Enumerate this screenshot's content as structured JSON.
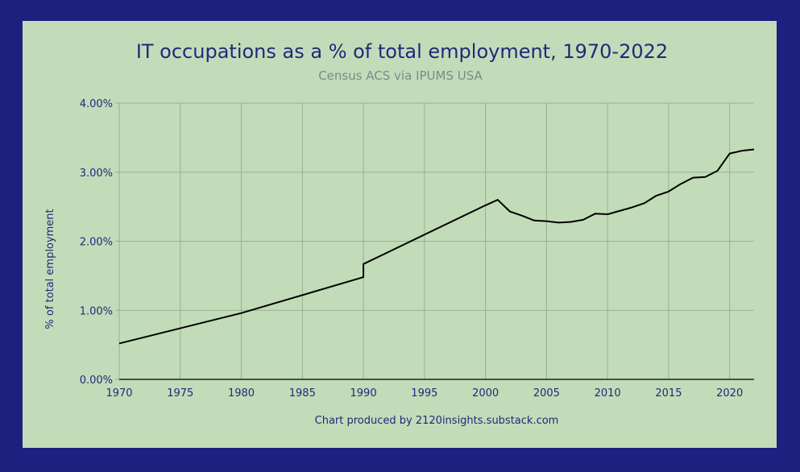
{
  "colors": {
    "frame": "#1e1f7e",
    "panel": "#c2dcb9",
    "grid": "#94b28e",
    "line": "#000000",
    "text": "#1e2a7a",
    "subtitle": "#7a8a8a"
  },
  "chart_data": {
    "type": "line",
    "title": "IT occupations as a % of total employment, 1970-2022",
    "subtitle": "Census ACS via IPUMS USA",
    "xlabel": "",
    "ylabel": "% of total employment",
    "credit": "Chart produced by 2120insights.substack.com",
    "xlim": [
      1970,
      2022
    ],
    "ylim": [
      0,
      4
    ],
    "x_ticks": [
      1970,
      1975,
      1980,
      1985,
      1990,
      1995,
      2000,
      2005,
      2010,
      2015,
      2020
    ],
    "y_ticks": [
      0,
      1,
      2,
      3,
      4
    ],
    "y_tick_labels": [
      "0.00%",
      "1.00%",
      "2.00%",
      "3.00%",
      "4.00%"
    ],
    "grid": true,
    "legend": "none",
    "series": [
      {
        "points": [
          [
            1970,
            0.52
          ],
          [
            1980,
            0.96
          ],
          [
            1990,
            1.48
          ],
          [
            1990,
            1.67
          ],
          [
            2000,
            2.52
          ],
          [
            2001,
            2.6
          ],
          [
            2002,
            2.43
          ],
          [
            2003,
            2.37
          ],
          [
            2004,
            2.3
          ],
          [
            2005,
            2.29
          ],
          [
            2006,
            2.27
          ],
          [
            2007,
            2.28
          ],
          [
            2008,
            2.31
          ],
          [
            2009,
            2.4
          ],
          [
            2010,
            2.39
          ],
          [
            2011,
            2.44
          ],
          [
            2012,
            2.49
          ],
          [
            2013,
            2.55
          ],
          [
            2014,
            2.66
          ],
          [
            2015,
            2.72
          ],
          [
            2016,
            2.83
          ],
          [
            2017,
            2.92
          ],
          [
            2018,
            2.93
          ],
          [
            2019,
            3.02
          ],
          [
            2020,
            3.27
          ],
          [
            2021,
            3.31
          ],
          [
            2022,
            3.33
          ]
        ]
      }
    ]
  }
}
